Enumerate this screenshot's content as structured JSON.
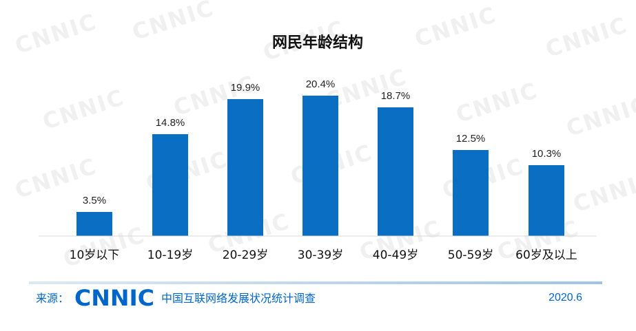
{
  "chart_data": {
    "type": "bar",
    "title": "网民年龄结构",
    "categories": [
      "10岁以下",
      "10-19岁",
      "20-29岁",
      "30-39岁",
      "40-49岁",
      "50-59岁",
      "60岁及以上"
    ],
    "values": [
      3.5,
      14.8,
      19.9,
      20.4,
      18.7,
      12.5,
      10.3
    ],
    "data_labels": [
      "3.5%",
      "14.8%",
      "19.9%",
      "20.4%",
      "18.7%",
      "12.5%",
      "10.3%"
    ],
    "xlabel": "",
    "ylabel": "",
    "ylim": [
      0,
      25
    ],
    "grid": false,
    "bar_color": "#0a6fc2"
  },
  "footer": {
    "source_label": "来源：",
    "logo_text": "CNNIC",
    "organization": "中国互联网络发展状况统计调查",
    "date": "2020.6"
  },
  "watermark": {
    "text": "CNNIC",
    "color": "#f0f0f0"
  },
  "colors": {
    "accent": "#0066cc"
  }
}
